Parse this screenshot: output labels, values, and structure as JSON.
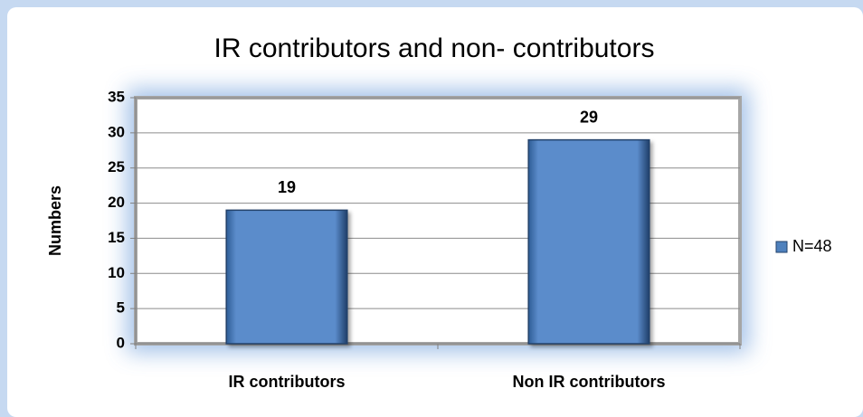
{
  "chart_data": {
    "type": "bar",
    "title": "IR contributors and non- contributors",
    "y_label": "Numbers",
    "categories": [
      "IR contributors",
      "Non IR contributors"
    ],
    "series": [
      {
        "name": "N=48",
        "color": "#4f81bd",
        "values": [
          19,
          29
        ]
      }
    ],
    "ylim": [
      0,
      35
    ],
    "yticks": [
      0,
      5,
      10,
      15,
      20,
      25,
      30,
      35
    ],
    "grid": true,
    "legend": "right"
  }
}
